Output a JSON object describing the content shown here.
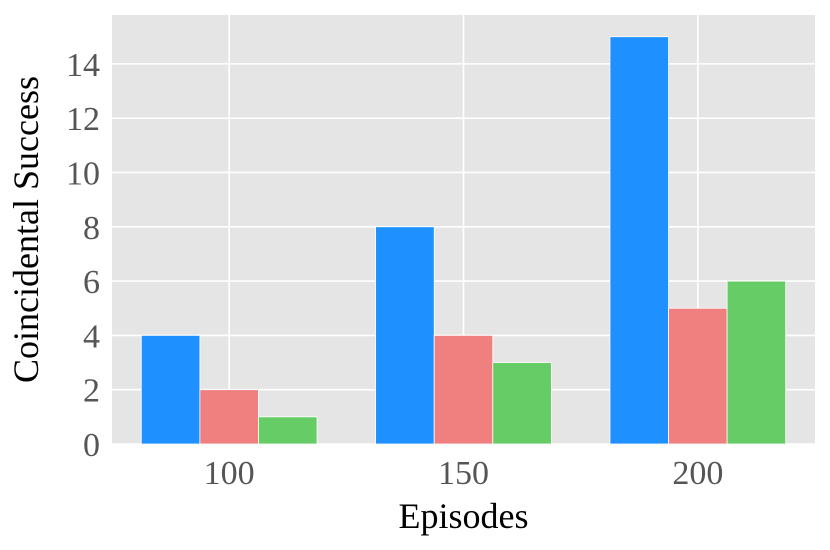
{
  "chart_data": {
    "type": "bar",
    "title": "",
    "xlabel": "Episodes",
    "ylabel": "Coincidental Success",
    "categories": [
      "100",
      "150",
      "200"
    ],
    "series": [
      {
        "values": [
          4,
          8,
          15
        ],
        "color": "#1e90ff"
      },
      {
        "values": [
          2,
          4,
          5
        ],
        "color": "#f08080"
      },
      {
        "values": [
          1,
          3,
          6
        ],
        "color": "#66cc66"
      }
    ],
    "ylim": [
      0,
      15.8
    ],
    "yticks": [
      0,
      2,
      4,
      6,
      8,
      10,
      12,
      14
    ],
    "grid": true,
    "background": "#e5e5e5",
    "gridColor": "#ffffff"
  }
}
